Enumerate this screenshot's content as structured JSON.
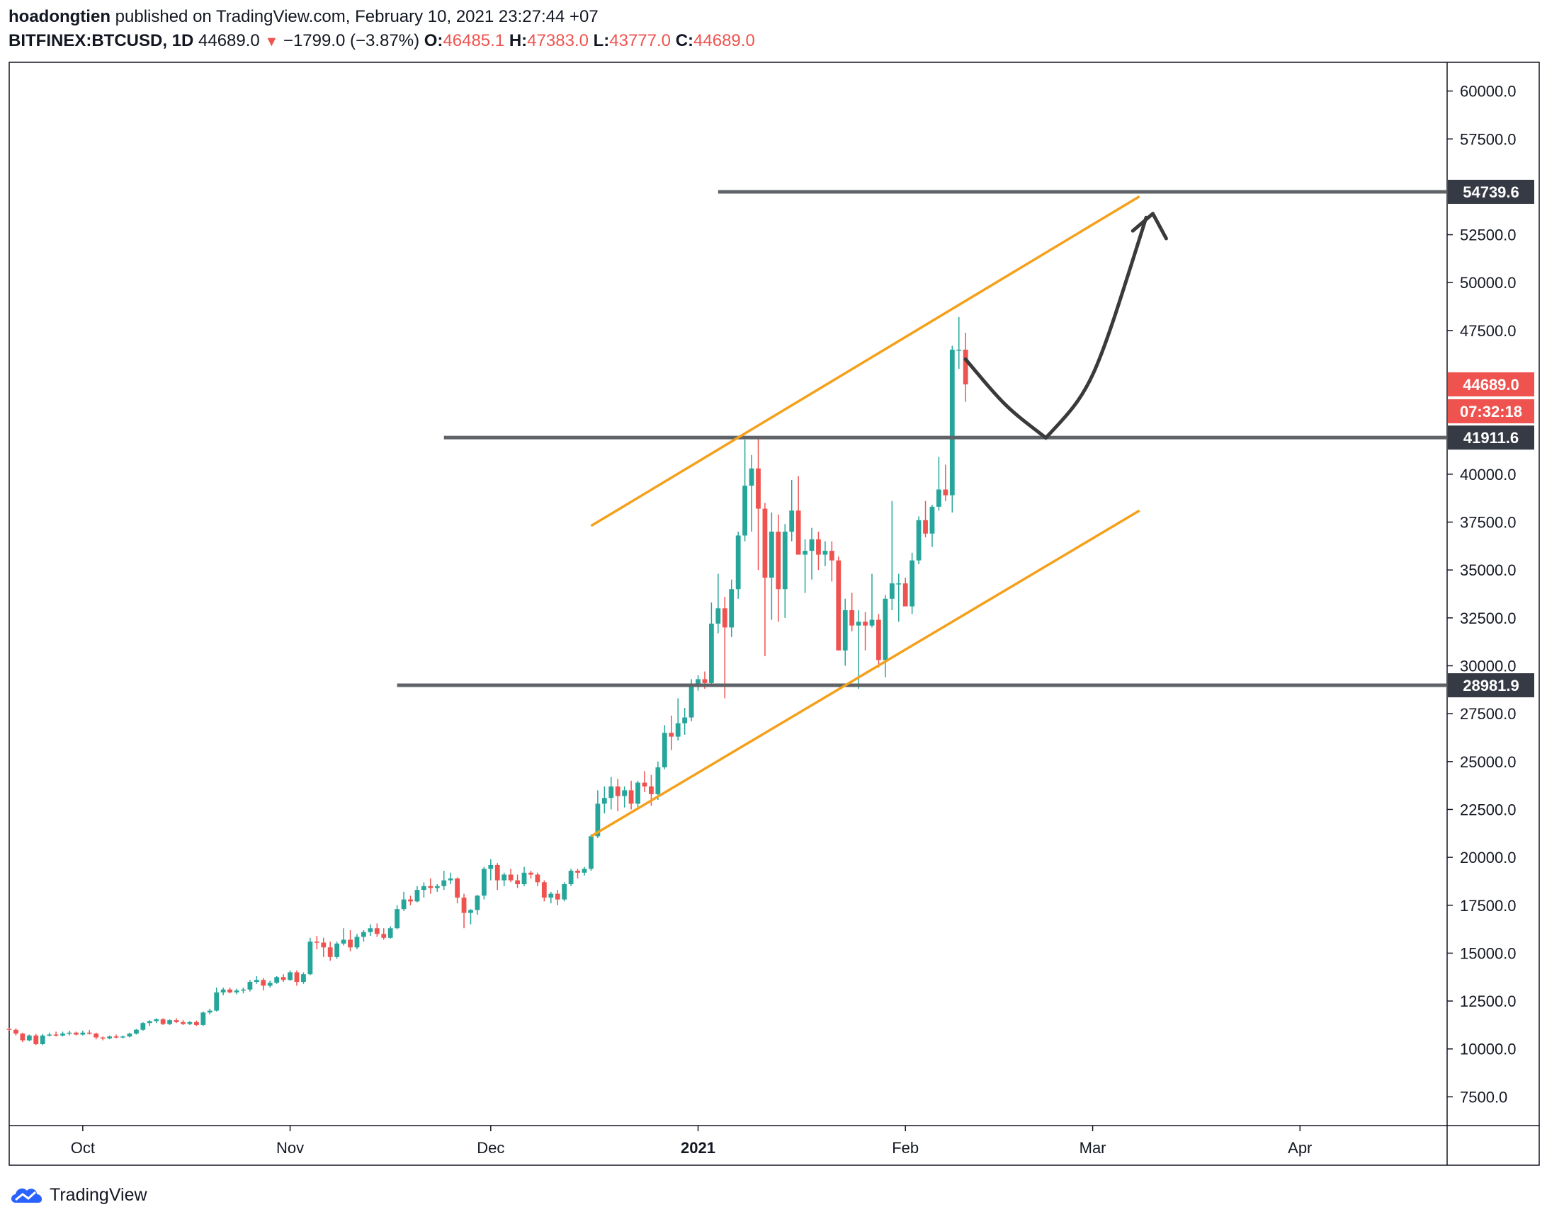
{
  "header": {
    "author": "hoadongtien",
    "published_text": "published on TradingView.com, February 10, 2021 23:27:44 +07",
    "symbol": "BITFINEX:BTCUSD, 1D",
    "last": "44689.0",
    "change_arrow": "▼",
    "change": "−1799.0 (−3.87%)",
    "o_label": "O:",
    "o_value": "46485.1",
    "h_label": "H:",
    "h_value": "47383.0",
    "l_label": "L:",
    "l_value": "43777.0",
    "c_label": "C:",
    "c_value": "44689.0"
  },
  "footer": {
    "brand": "TradingView"
  },
  "colors": {
    "up": "#26a69a",
    "down": "#ef5350",
    "channel": "#f5a01a",
    "level": "#5f6368",
    "arrow": "#3a3a3a",
    "label_dark": "#363a45",
    "label_red": "#ef5350"
  },
  "chart_data": {
    "type": "candlestick",
    "symbol": "BITFINEX:BTCUSD",
    "interval": "1D",
    "ylim": [
      6000,
      61500
    ],
    "y_ticks": [
      "60000.0",
      "57500.0",
      "52500.0",
      "50000.0",
      "47500.0",
      "40000.0",
      "37500.0",
      "35000.0",
      "32500.0",
      "30000.0",
      "27500.0",
      "25000.0",
      "22500.0",
      "20000.0",
      "17500.0",
      "15000.0",
      "12500.0",
      "10000.0",
      "7500.0"
    ],
    "x_ticks": [
      {
        "label": "Oct",
        "date": "2020-10-01",
        "bold": false
      },
      {
        "label": "Nov",
        "date": "2020-11-01",
        "bold": false
      },
      {
        "label": "Dec",
        "date": "2020-12-01",
        "bold": false
      },
      {
        "label": "2021",
        "date": "2021-01-01",
        "bold": true
      },
      {
        "label": "Feb",
        "date": "2021-02-01",
        "bold": false
      },
      {
        "label": "Mar",
        "date": "2021-03-01",
        "bold": false
      },
      {
        "label": "Apr",
        "date": "2021-04-01",
        "bold": false
      }
    ],
    "x_range": [
      "2020-09-20",
      "2021-04-23"
    ],
    "candles_start": "2020-09-20",
    "candles": [
      [
        11050,
        11100,
        10950,
        11000
      ],
      [
        11000,
        11080,
        10700,
        10800
      ],
      [
        10800,
        10850,
        10350,
        10450
      ],
      [
        10450,
        10750,
        10400,
        10700
      ],
      [
        10700,
        10780,
        10200,
        10250
      ],
      [
        10250,
        10780,
        10200,
        10700
      ],
      [
        10700,
        10850,
        10650,
        10750
      ],
      [
        10750,
        10900,
        10650,
        10700
      ],
      [
        10700,
        10900,
        10650,
        10800
      ],
      [
        10800,
        10950,
        10700,
        10850
      ],
      [
        10850,
        10900,
        10700,
        10750
      ],
      [
        10750,
        10950,
        10700,
        10850
      ],
      [
        10850,
        10980,
        10750,
        10800
      ],
      [
        10800,
        10850,
        10500,
        10600
      ],
      [
        10600,
        10650,
        10450,
        10550
      ],
      [
        10550,
        10700,
        10500,
        10650
      ],
      [
        10650,
        10750,
        10550,
        10600
      ],
      [
        10600,
        10700,
        10550,
        10650
      ],
      [
        10650,
        10850,
        10600,
        10800
      ],
      [
        10800,
        11050,
        10750,
        11000
      ],
      [
        11000,
        11400,
        10950,
        11350
      ],
      [
        11350,
        11500,
        11200,
        11450
      ],
      [
        11450,
        11600,
        11350,
        11550
      ],
      [
        11550,
        11600,
        11250,
        11300
      ],
      [
        11300,
        11550,
        11250,
        11500
      ],
      [
        11500,
        11600,
        11350,
        11400
      ],
      [
        11400,
        11500,
        11250,
        11300
      ],
      [
        11300,
        11450,
        11250,
        11400
      ],
      [
        11400,
        11480,
        11200,
        11250
      ],
      [
        11250,
        11950,
        11200,
        11900
      ],
      [
        11900,
        12100,
        11800,
        12000
      ],
      [
        12000,
        13200,
        11950,
        12950
      ],
      [
        12950,
        13200,
        12800,
        13100
      ],
      [
        13100,
        13200,
        12900,
        12950
      ],
      [
        12950,
        13150,
        12850,
        13050
      ],
      [
        13050,
        13200,
        12900,
        13100
      ],
      [
        13100,
        13600,
        13000,
        13500
      ],
      [
        13500,
        13800,
        13400,
        13600
      ],
      [
        13600,
        13700,
        13050,
        13300
      ],
      [
        13300,
        13550,
        13200,
        13450
      ],
      [
        13450,
        13800,
        13400,
        13750
      ],
      [
        13750,
        13900,
        13500,
        13600
      ],
      [
        13600,
        14100,
        13550,
        14000
      ],
      [
        14000,
        14100,
        13300,
        13500
      ],
      [
        13500,
        14000,
        13400,
        13900
      ],
      [
        13900,
        15800,
        13850,
        15600
      ],
      [
        15600,
        15900,
        15200,
        15550
      ],
      [
        15550,
        15800,
        14800,
        15300
      ],
      [
        15300,
        15600,
        14600,
        14800
      ],
      [
        14800,
        15600,
        14700,
        15500
      ],
      [
        15500,
        16300,
        15400,
        15700
      ],
      [
        15700,
        16200,
        15100,
        15300
      ],
      [
        15300,
        16000,
        15200,
        15850
      ],
      [
        15850,
        16200,
        15600,
        16100
      ],
      [
        16100,
        16500,
        15900,
        16300
      ],
      [
        16300,
        16550,
        15850,
        16000
      ],
      [
        16000,
        16300,
        15700,
        15800
      ],
      [
        15800,
        16400,
        15750,
        16300
      ],
      [
        16300,
        17500,
        16250,
        17300
      ],
      [
        17300,
        18200,
        17200,
        17800
      ],
      [
        17800,
        18000,
        17500,
        17700
      ],
      [
        17700,
        18500,
        17650,
        18300
      ],
      [
        18300,
        18700,
        17900,
        18500
      ],
      [
        18500,
        18900,
        18100,
        18400
      ],
      [
        18400,
        18600,
        18200,
        18500
      ],
      [
        18500,
        19300,
        18300,
        18800
      ],
      [
        18800,
        19200,
        18600,
        18900
      ],
      [
        18900,
        18950,
        17600,
        17900
      ],
      [
        17900,
        18100,
        16300,
        17100
      ],
      [
        17100,
        17300,
        16500,
        17250
      ],
      [
        17250,
        18050,
        17000,
        18000
      ],
      [
        18000,
        19500,
        17800,
        19400
      ],
      [
        19400,
        19900,
        18800,
        19600
      ],
      [
        19600,
        19700,
        18300,
        18800
      ],
      [
        18800,
        19200,
        18500,
        19100
      ],
      [
        19100,
        19400,
        18700,
        18800
      ],
      [
        18800,
        19100,
        18400,
        18600
      ],
      [
        18600,
        19500,
        18500,
        19200
      ],
      [
        19200,
        19300,
        18900,
        19100
      ],
      [
        19100,
        19200,
        18500,
        18700
      ],
      [
        18700,
        18800,
        17700,
        17900
      ],
      [
        17900,
        18200,
        17600,
        18100
      ],
      [
        18100,
        18300,
        17500,
        17800
      ],
      [
        17800,
        18700,
        17700,
        18600
      ],
      [
        18600,
        19400,
        18500,
        19300
      ],
      [
        19300,
        19400,
        18900,
        19200
      ],
      [
        19200,
        19500,
        19050,
        19400
      ],
      [
        19400,
        21200,
        19300,
        21100
      ],
      [
        21100,
        23500,
        21000,
        22800
      ],
      [
        22800,
        23700,
        22300,
        23100
      ],
      [
        23100,
        24200,
        22500,
        23700
      ],
      [
        23700,
        24100,
        22400,
        23200
      ],
      [
        23200,
        23700,
        22600,
        23500
      ],
      [
        23500,
        24000,
        22500,
        22800
      ],
      [
        22800,
        24000,
        22600,
        23900
      ],
      [
        23900,
        24500,
        23400,
        23700
      ],
      [
        23700,
        24300,
        22700,
        23300
      ],
      [
        23300,
        25000,
        23000,
        24700
      ],
      [
        24700,
        26900,
        24600,
        26500
      ],
      [
        26500,
        27400,
        25600,
        26300
      ],
      [
        26300,
        28300,
        26100,
        27000
      ],
      [
        27000,
        27800,
        26400,
        27300
      ],
      [
        27300,
        29300,
        27100,
        28900
      ],
      [
        28900,
        29500,
        28700,
        29300
      ],
      [
        29300,
        29700,
        28800,
        29100
      ],
      [
        29100,
        33300,
        28900,
        32200
      ],
      [
        32200,
        34800,
        31700,
        33000
      ],
      [
        33000,
        33600,
        28300,
        32000
      ],
      [
        32000,
        34500,
        31500,
        34000
      ],
      [
        34000,
        37000,
        33500,
        36800
      ],
      [
        36800,
        41800,
        36500,
        39400
      ],
      [
        39400,
        41000,
        37000,
        40300
      ],
      [
        40300,
        42000,
        35000,
        38200
      ],
      [
        38200,
        38500,
        30500,
        34600
      ],
      [
        34600,
        38000,
        32400,
        37000
      ],
      [
        37000,
        37900,
        32300,
        34000
      ],
      [
        34000,
        37400,
        32500,
        37000
      ],
      [
        37000,
        39700,
        36500,
        38100
      ],
      [
        38100,
        39900,
        36000,
        35800
      ],
      [
        35800,
        36600,
        33800,
        36000
      ],
      [
        36000,
        37200,
        34500,
        36600
      ],
      [
        36600,
        37000,
        35000,
        35800
      ],
      [
        35800,
        36500,
        35200,
        36000
      ],
      [
        36000,
        36500,
        34400,
        35500
      ],
      [
        35500,
        35700,
        31000,
        30800
      ],
      [
        30800,
        33500,
        30000,
        32900
      ],
      [
        32900,
        33800,
        31800,
        32100
      ],
      [
        32100,
        32900,
        28800,
        32300
      ],
      [
        32300,
        32800,
        30800,
        32100
      ],
      [
        32100,
        34800,
        32000,
        32400
      ],
      [
        32400,
        32700,
        29900,
        30300
      ],
      [
        30300,
        33700,
        29400,
        33500
      ],
      [
        33500,
        38600,
        32900,
        34300
      ],
      [
        34300,
        34800,
        32300,
        34300
      ],
      [
        34300,
        34600,
        33100,
        33100
      ],
      [
        33100,
        35900,
        32700,
        35500
      ],
      [
        35500,
        37800,
        35300,
        37600
      ],
      [
        37600,
        38600,
        36700,
        36900
      ],
      [
        36900,
        38400,
        36200,
        38300
      ],
      [
        38300,
        40900,
        38100,
        39200
      ],
      [
        39200,
        40500,
        38600,
        38900
      ],
      [
        38900,
        46700,
        38000,
        46500
      ],
      [
        46500,
        48200,
        45500,
        46500
      ],
      [
        46500,
        47383,
        43777,
        44689
      ]
    ],
    "horizontal_levels": [
      {
        "price": 54739.6,
        "label": "54739.6",
        "from": "2021-01-04"
      },
      {
        "price": 41911.6,
        "label": "41911.6",
        "from": "2020-11-24"
      },
      {
        "price": 28981.9,
        "label": "28981.9",
        "from": "2020-11-17"
      }
    ],
    "channel_upper": [
      [
        "2020-12-16",
        37300
      ],
      [
        "2021-03-08",
        54500
      ]
    ],
    "channel_lower": [
      [
        "2020-12-16",
        21100
      ],
      [
        "2021-03-08",
        38100
      ]
    ],
    "last_price": {
      "price": 44689.0,
      "label": "44689.0",
      "countdown": "07:32:18"
    },
    "projection_path": [
      [
        "2021-02-10",
        46000
      ],
      [
        "2021-02-16",
        43500
      ],
      [
        "2021-02-22",
        41900
      ],
      [
        "2021-03-01",
        44500
      ],
      [
        "2021-03-09",
        53400
      ]
    ],
    "projection_arrowhead": [
      [
        "2021-03-07",
        52700
      ],
      [
        "2021-03-10",
        53600
      ],
      [
        "2021-03-12",
        52300
      ]
    ]
  }
}
